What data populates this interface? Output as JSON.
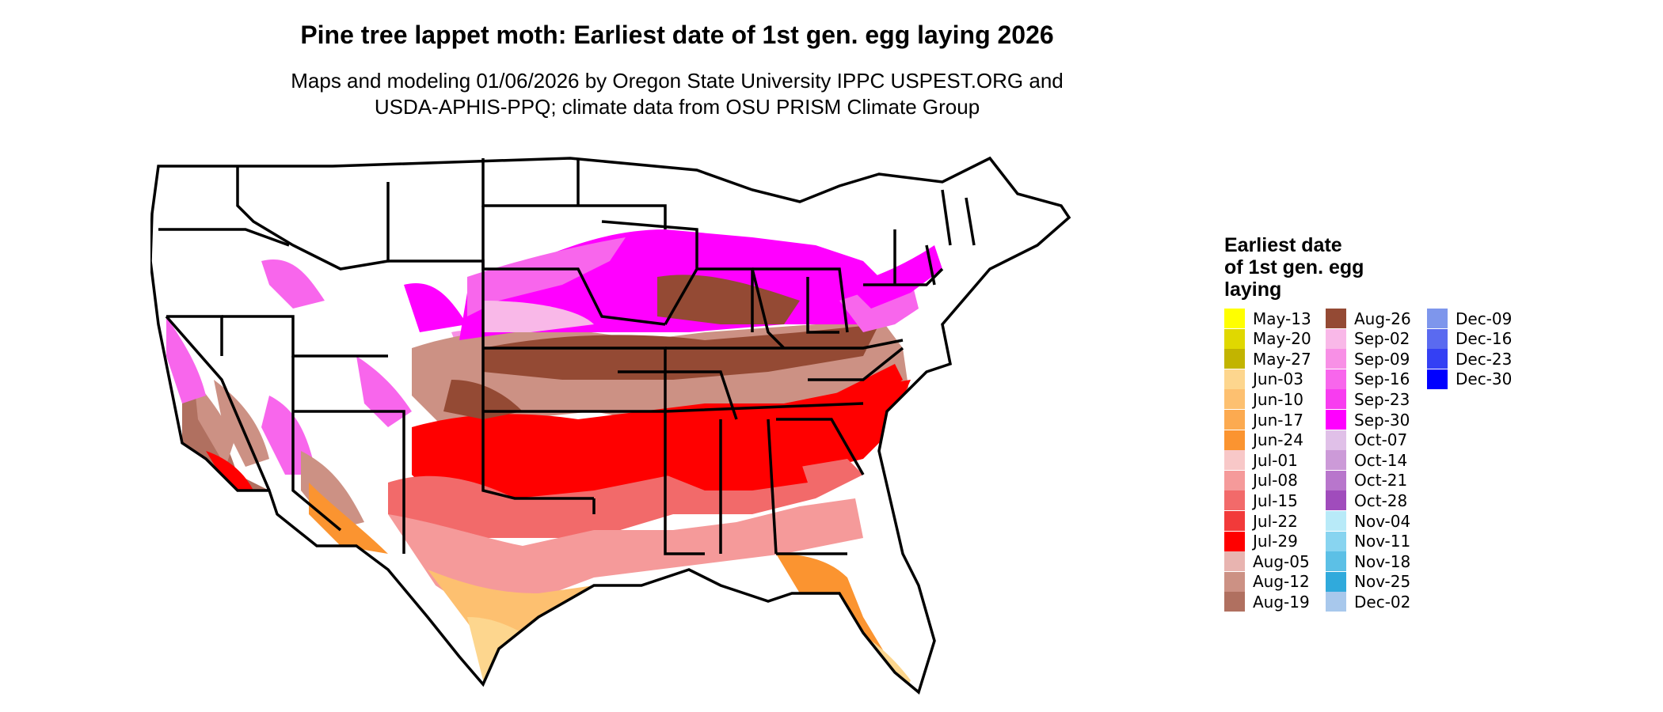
{
  "header": {
    "title": "Pine tree lappet moth: Earliest date of 1st gen. egg laying 2026",
    "subtitle_line1": "Maps and modeling 01/06/2026 by Oregon State University IPPC USPEST.ORG and",
    "subtitle_line2": "USDA-APHIS-PPQ; climate data from OSU PRISM Climate Group"
  },
  "legend": {
    "title_line1": "Earliest date",
    "title_line2": "of 1st gen. egg",
    "title_line3": "laying",
    "items": [
      {
        "label": "May-13",
        "color": "#ffff00"
      },
      {
        "label": "May-20",
        "color": "#e0d800"
      },
      {
        "label": "May-27",
        "color": "#c2b400"
      },
      {
        "label": "Jun-03",
        "color": "#fdd68e"
      },
      {
        "label": "Jun-10",
        "color": "#fdc070"
      },
      {
        "label": "Jun-17",
        "color": "#fcaa50"
      },
      {
        "label": "Jun-24",
        "color": "#fb9430"
      },
      {
        "label": "Jul-01",
        "color": "#f8c8c8"
      },
      {
        "label": "Jul-08",
        "color": "#f59a9a"
      },
      {
        "label": "Jul-15",
        "color": "#f26a6a"
      },
      {
        "label": "Jul-22",
        "color": "#f23a3a"
      },
      {
        "label": "Jul-29",
        "color": "#ff0000"
      },
      {
        "label": "Aug-05",
        "color": "#e8b4b0"
      },
      {
        "label": "Aug-12",
        "color": "#cc9184"
      },
      {
        "label": "Aug-19",
        "color": "#b07060"
      },
      {
        "label": "Aug-26",
        "color": "#944a34"
      },
      {
        "label": "Sep-02",
        "color": "#f9b8e8"
      },
      {
        "label": "Sep-09",
        "color": "#f890e6"
      },
      {
        "label": "Sep-16",
        "color": "#f866ec"
      },
      {
        "label": "Sep-23",
        "color": "#f83cf0"
      },
      {
        "label": "Sep-30",
        "color": "#ff00ff"
      },
      {
        "label": "Oct-07",
        "color": "#e0c0e8"
      },
      {
        "label": "Oct-14",
        "color": "#cc9ad8"
      },
      {
        "label": "Oct-21",
        "color": "#b876cc"
      },
      {
        "label": "Oct-28",
        "color": "#a04cbc"
      },
      {
        "label": "Nov-04",
        "color": "#b8eaf8"
      },
      {
        "label": "Nov-11",
        "color": "#88d4f0"
      },
      {
        "label": "Nov-18",
        "color": "#5cc0e6"
      },
      {
        "label": "Nov-25",
        "color": "#30aadc"
      },
      {
        "label": "Dec-02",
        "color": "#a8c8ec"
      },
      {
        "label": "Dec-09",
        "color": "#7e96ec"
      },
      {
        "label": "Dec-16",
        "color": "#5a6af0"
      },
      {
        "label": "Dec-23",
        "color": "#3440f4"
      },
      {
        "label": "Dec-30",
        "color": "#0000ff"
      }
    ]
  }
}
